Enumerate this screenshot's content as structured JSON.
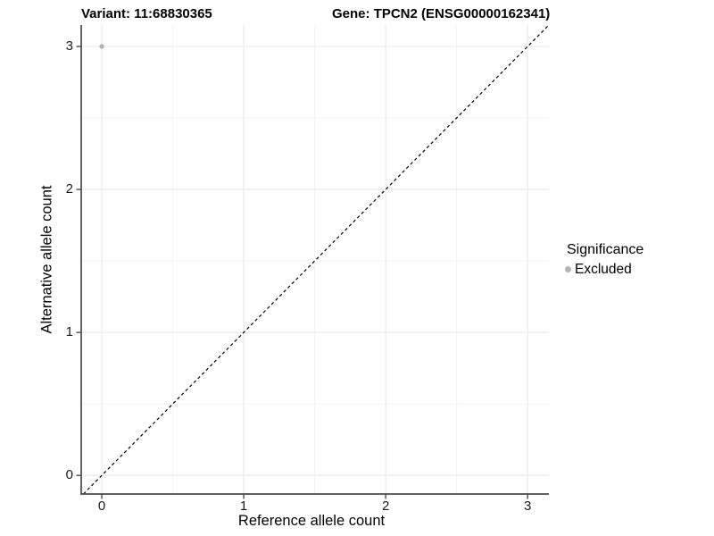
{
  "titles": {
    "variant": "Variant: 11:68830365",
    "gene": "Gene: TPCN2 (ENSG00000162341)"
  },
  "legend": {
    "title": "Significance",
    "items": [
      {
        "label": "Excluded",
        "color": "#b4b4b4"
      }
    ]
  },
  "colors": {
    "background": "#ffffff",
    "grid_major": "#e8e8e8",
    "grid_minor": "#f2f2f2",
    "axis_line": "#4a4a4a",
    "tick_mark": "#4a4a4a",
    "text": "#000000",
    "reference_line": "#000000"
  },
  "chart_data": {
    "type": "scatter",
    "title": "",
    "xlabel": "Reference allele count",
    "ylabel": "Alternative allele count",
    "x_ticks": [
      0,
      1,
      2,
      3
    ],
    "y_ticks": [
      0,
      1,
      2,
      3
    ],
    "x_minor_ticks": [
      0.5,
      1.5,
      2.5
    ],
    "y_minor_ticks": [
      0.5,
      1.5,
      2.5
    ],
    "xlim": [
      -0.145,
      3.15
    ],
    "ylim": [
      -0.13,
      3.15
    ],
    "grid": true,
    "legend_position": "right",
    "series": [
      {
        "name": "Excluded",
        "color": "#b4b4b4",
        "points": [
          {
            "x": 0,
            "y": 3
          }
        ]
      }
    ],
    "reference_line": {
      "slope": 1,
      "intercept": 0,
      "style": "dashed"
    }
  }
}
